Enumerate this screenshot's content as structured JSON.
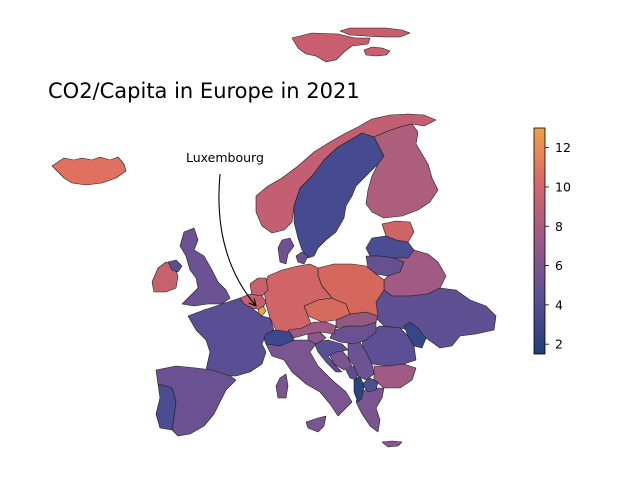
{
  "title": "CO2/Capita in Europe in 2021",
  "annotation": {
    "text": "Luxembourg"
  },
  "colorbar": {
    "min": 1.5,
    "max": 13.0,
    "ticks": [
      "2",
      "4",
      "6",
      "8",
      "10",
      "12"
    ],
    "colors": [
      "#1f3f7a",
      "#5a4f96",
      "#9a5887",
      "#d6676a",
      "#f2a045"
    ]
  },
  "countries": [
    {
      "name": "Iceland",
      "color": "#e07060"
    },
    {
      "name": "Svalbard",
      "color": "#c85e6e"
    },
    {
      "name": "Norway",
      "color": "#c35f72"
    },
    {
      "name": "Sweden",
      "color": "#464a8e"
    },
    {
      "name": "Finland",
      "color": "#ac5e7c"
    },
    {
      "name": "Estonia",
      "color": "#cf6466"
    },
    {
      "name": "Latvia",
      "color": "#4a4d91"
    },
    {
      "name": "Lithuania",
      "color": "#66508f"
    },
    {
      "name": "Belarus",
      "color": "#a15a83"
    },
    {
      "name": "Ukraine",
      "color": "#5f4f93"
    },
    {
      "name": "Moldova",
      "color": "#36468a"
    },
    {
      "name": "Romania",
      "color": "#5c4f93"
    },
    {
      "name": "Bulgaria",
      "color": "#a05a84"
    },
    {
      "name": "Greece",
      "color": "#7b5590"
    },
    {
      "name": "Cyprus",
      "color": "#8a5790"
    },
    {
      "name": "North Macedonia",
      "color": "#4e4e92"
    },
    {
      "name": "Albania",
      "color": "#27457f"
    },
    {
      "name": "Montenegro",
      "color": "#5b4f94"
    },
    {
      "name": "Serbia",
      "color": "#6d5392"
    },
    {
      "name": "Bosnia and Herzegovina",
      "color": "#7a5590"
    },
    {
      "name": "Croatia",
      "color": "#5a4f94"
    },
    {
      "name": "Slovenia",
      "color": "#8a5789"
    },
    {
      "name": "Hungary",
      "color": "#6a5292"
    },
    {
      "name": "Slovakia",
      "color": "#94597f"
    },
    {
      "name": "Czechia",
      "color": "#d66a5e"
    },
    {
      "name": "Poland",
      "color": "#d6675d"
    },
    {
      "name": "Germany",
      "color": "#d16466"
    },
    {
      "name": "Denmark",
      "color": "#6c5290"
    },
    {
      "name": "Netherlands",
      "color": "#c9616c"
    },
    {
      "name": "Belgium",
      "color": "#c5616f"
    },
    {
      "name": "Luxembourg",
      "color": "#f0a045"
    },
    {
      "name": "France",
      "color": "#5a4f94"
    },
    {
      "name": "Switzerland",
      "color": "#3d478d"
    },
    {
      "name": "Austria",
      "color": "#9d5a82"
    },
    {
      "name": "Italy",
      "color": "#7a5590"
    },
    {
      "name": "Spain",
      "color": "#6a5292"
    },
    {
      "name": "Portugal",
      "color": "#4a4d91"
    },
    {
      "name": "United Kingdom",
      "color": "#6a5293"
    },
    {
      "name": "Ireland",
      "color": "#c6616e"
    },
    {
      "name": "Northern Ireland",
      "color": "#5a4f95"
    }
  ]
}
